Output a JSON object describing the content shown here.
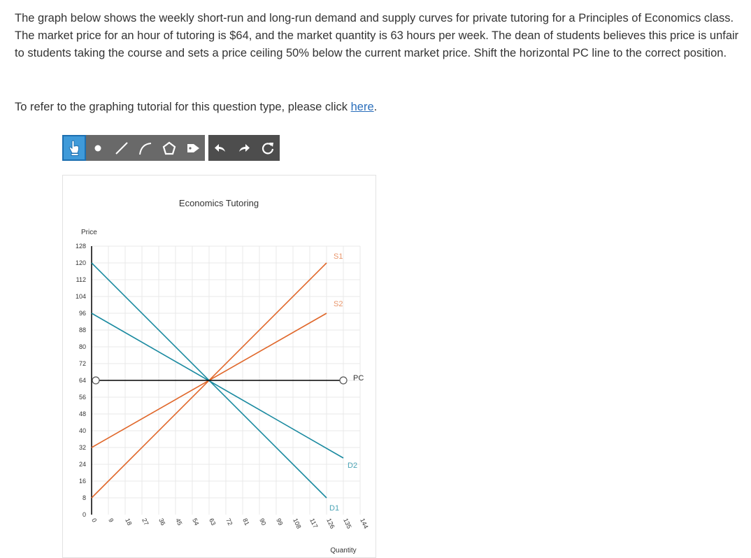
{
  "question": {
    "text": "The graph below shows the weekly short-run and long-run demand and supply curves for private tutoring for a Principles of Economics class. The market price for an hour of tutoring is $64, and the market quantity is 63 hours per week. The dean of students believes this price is unfair to students taking the course and sets a price ceiling 50% below the current market price. Shift the horizontal PC line to the correct position.",
    "tutorial_prefix": "To refer to the graphing tutorial for this question type, please click ",
    "tutorial_link": "here",
    "tutorial_suffix": "."
  },
  "toolbar": {
    "tools": [
      {
        "name": "move-tool",
        "icon": "hand-pointer-icon",
        "selected": true
      },
      {
        "name": "point-tool",
        "icon": "point-icon"
      },
      {
        "name": "line-tool",
        "icon": "line-icon"
      },
      {
        "name": "curve-tool",
        "icon": "curve-icon"
      },
      {
        "name": "polygon-tool",
        "icon": "polygon-icon"
      },
      {
        "name": "label-tool",
        "icon": "tag-icon"
      },
      {
        "name": "undo-button",
        "icon": "undo-arrow-icon"
      },
      {
        "name": "redo-button",
        "icon": "redo-arrow-icon"
      },
      {
        "name": "reset-button",
        "icon": "reset-icon"
      }
    ]
  },
  "colors": {
    "demand": "#1a8aa0",
    "supply": "#e0672a",
    "pc_line": "#000000",
    "supply_label": "#e8956a",
    "demand_label": "#4aa3b5",
    "grid": "#e8e8e8"
  },
  "chart_data": {
    "type": "line",
    "title": "Economics Tutoring",
    "xlabel": "Quantity",
    "ylabel": "Price",
    "xlim": [
      0,
      144
    ],
    "ylim": [
      0,
      128
    ],
    "x_ticks": [
      0,
      9,
      18,
      27,
      36,
      45,
      54,
      63,
      72,
      81,
      90,
      99,
      108,
      117,
      126,
      135,
      144
    ],
    "y_ticks": [
      0,
      8,
      16,
      24,
      32,
      40,
      48,
      56,
      64,
      72,
      80,
      88,
      96,
      104,
      112,
      120,
      128
    ],
    "grid": true,
    "series": [
      {
        "name": "S1",
        "kind": "supply",
        "points": [
          [
            0,
            8
          ],
          [
            126,
            120
          ]
        ]
      },
      {
        "name": "S2",
        "kind": "supply",
        "points": [
          [
            0,
            32
          ],
          [
            126,
            96
          ]
        ]
      },
      {
        "name": "D1",
        "kind": "demand",
        "points": [
          [
            0,
            120
          ],
          [
            126,
            8
          ]
        ]
      },
      {
        "name": "D2",
        "kind": "demand",
        "points": [
          [
            0,
            96
          ],
          [
            135,
            27
          ]
        ]
      }
    ],
    "pc_line": {
      "name": "PC",
      "price": 64,
      "x_start": 0,
      "x_end": 135
    },
    "equilibrium": {
      "quantity": 63,
      "price": 64
    }
  }
}
